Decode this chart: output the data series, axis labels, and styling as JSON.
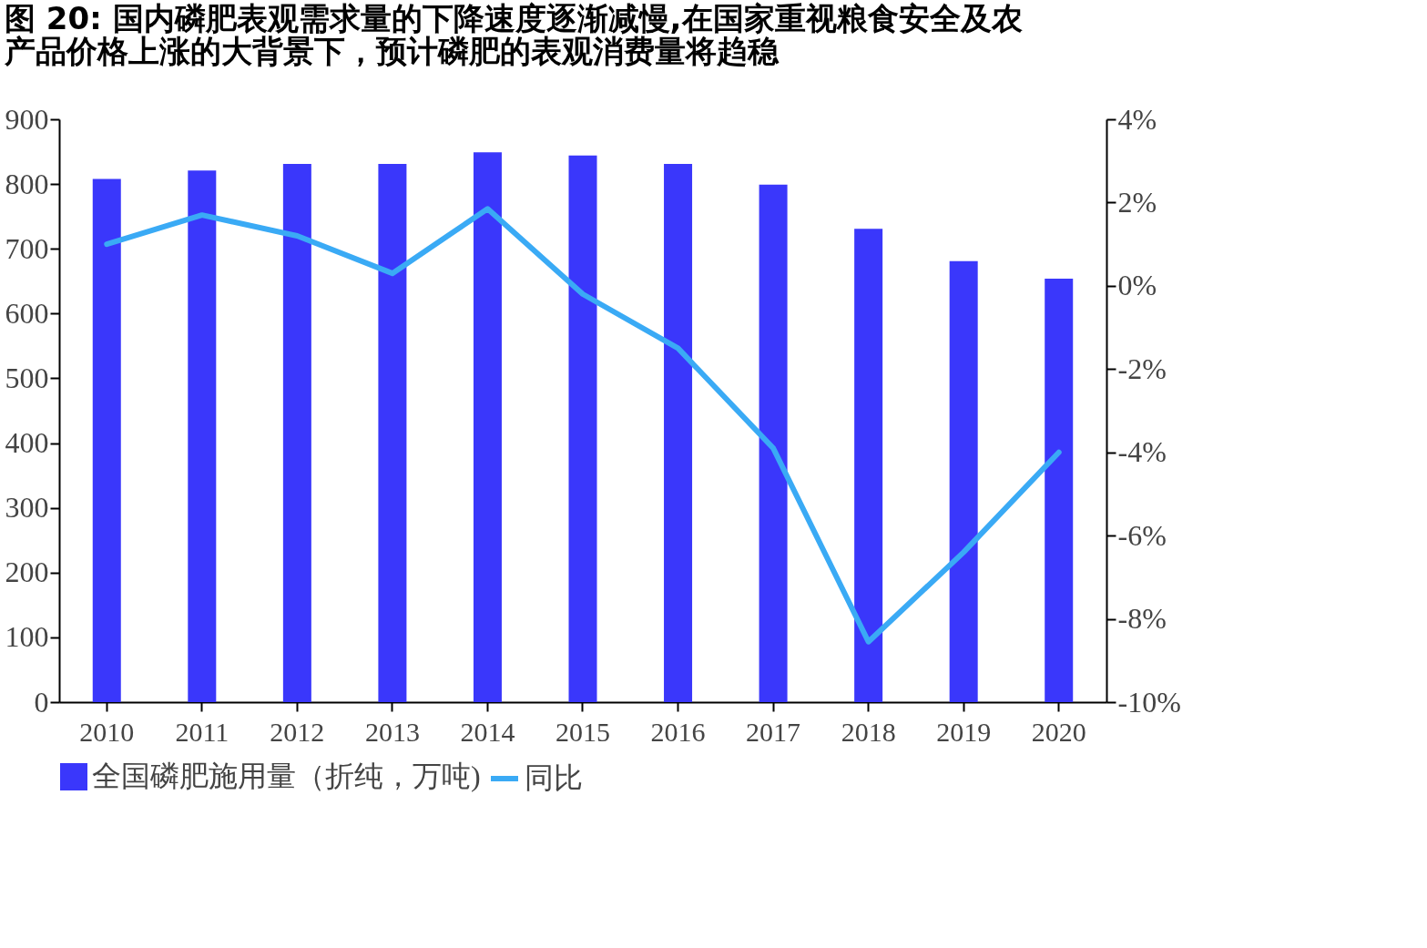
{
  "chart_data": {
    "type": "bar",
    "title": "图 20: 国内磷肥表观需求量的下降速度逐渐减慢,在国家重视粮食安全及农产品价格上涨的大背景下，预计磷肥的表观消费量将趋稳",
    "categories": [
      "2010",
      "2011",
      "2012",
      "2013",
      "2014",
      "2015",
      "2016",
      "2017",
      "2018",
      "2019",
      "2020"
    ],
    "series": [
      {
        "name": "全国磷肥施用量（折纯，万吨)",
        "color": "#3a37fb",
        "values": [
          808,
          821,
          831,
          831,
          849,
          844,
          831,
          799,
          731,
          681,
          654
        ]
      },
      {
        "name": "同比",
        "type": "line",
        "axis": "y2",
        "color": "#3aaaf5",
        "values": [
          1.0,
          1.7,
          1.2,
          0.3,
          1.85,
          -0.2,
          -1.5,
          -3.9,
          -8.55,
          -6.4,
          -4.0
        ]
      }
    ],
    "ylim": [
      0,
      900
    ],
    "yticks": [
      0,
      100,
      200,
      300,
      400,
      500,
      600,
      700,
      800,
      900
    ],
    "y2lim": [
      -10,
      4
    ],
    "y2ticks": [
      {
        "value": -10,
        "label": "-10%"
      },
      {
        "value": -8,
        "label": "-8%"
      },
      {
        "value": -6,
        "label": "-6%"
      },
      {
        "value": -4,
        "label": "-4%"
      },
      {
        "value": -2,
        "label": "-2%"
      },
      {
        "value": 0,
        "label": "0%"
      },
      {
        "value": 2,
        "label": "2%"
      },
      {
        "value": 4,
        "label": "4%"
      }
    ],
    "grid": false,
    "legend": "bottom",
    "marker": "none",
    "line_style": "solid"
  }
}
